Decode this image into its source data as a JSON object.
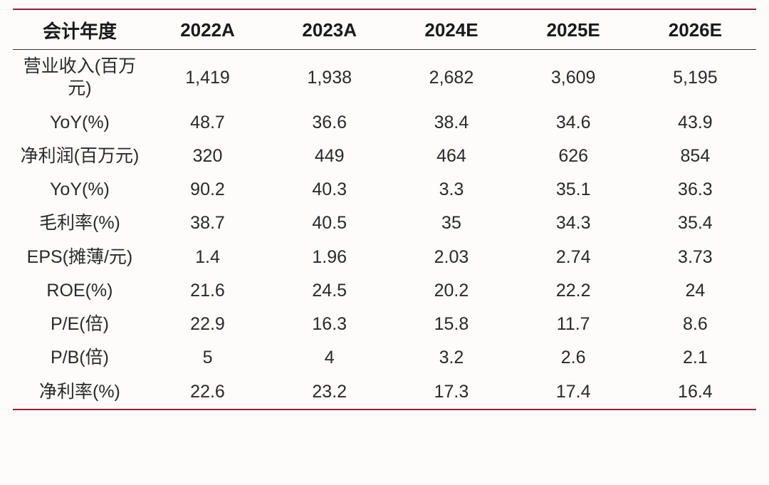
{
  "table": {
    "type": "table",
    "border_color": "#9b1c3a",
    "header_bottom_color": "#333333",
    "background_color": "#fdfcfa",
    "text_color": "#2a2a2a",
    "header_fontsize": 26,
    "body_fontsize": 25,
    "font_weight_header": "bold",
    "columns": [
      "会计年度",
      "2022A",
      "2023A",
      "2024E",
      "2025E",
      "2026E"
    ],
    "col_widths_pct": [
      18,
      16.4,
      16.4,
      16.4,
      16.4,
      16.4
    ],
    "rows": [
      {
        "label": "营业收入(百万元)",
        "multiline": true,
        "values": [
          "1,419",
          "1,938",
          "2,682",
          "3,609",
          "5,195"
        ]
      },
      {
        "label": "YoY(%)",
        "multiline": false,
        "values": [
          "48.7",
          "36.6",
          "38.4",
          "34.6",
          "43.9"
        ]
      },
      {
        "label": "净利润(百万元)",
        "multiline": true,
        "values": [
          "320",
          "449",
          "464",
          "626",
          "854"
        ]
      },
      {
        "label": "YoY(%)",
        "multiline": false,
        "values": [
          "90.2",
          "40.3",
          "3.3",
          "35.1",
          "36.3"
        ]
      },
      {
        "label": "毛利率(%)",
        "multiline": false,
        "values": [
          "38.7",
          "40.5",
          "35",
          "34.3",
          "35.4"
        ]
      },
      {
        "label": "EPS(摊薄/元)",
        "multiline": true,
        "values": [
          "1.4",
          "1.96",
          "2.03",
          "2.74",
          "3.73"
        ]
      },
      {
        "label": "ROE(%)",
        "multiline": false,
        "values": [
          "21.6",
          "24.5",
          "20.2",
          "22.2",
          "24"
        ]
      },
      {
        "label": "P/E(倍)",
        "multiline": false,
        "values": [
          "22.9",
          "16.3",
          "15.8",
          "11.7",
          "8.6"
        ]
      },
      {
        "label": "P/B(倍)",
        "multiline": false,
        "values": [
          "5",
          "4",
          "3.2",
          "2.6",
          "2.1"
        ]
      },
      {
        "label": "净利率(%)",
        "multiline": false,
        "values": [
          "22.6",
          "23.2",
          "17.3",
          "17.4",
          "16.4"
        ]
      }
    ]
  }
}
